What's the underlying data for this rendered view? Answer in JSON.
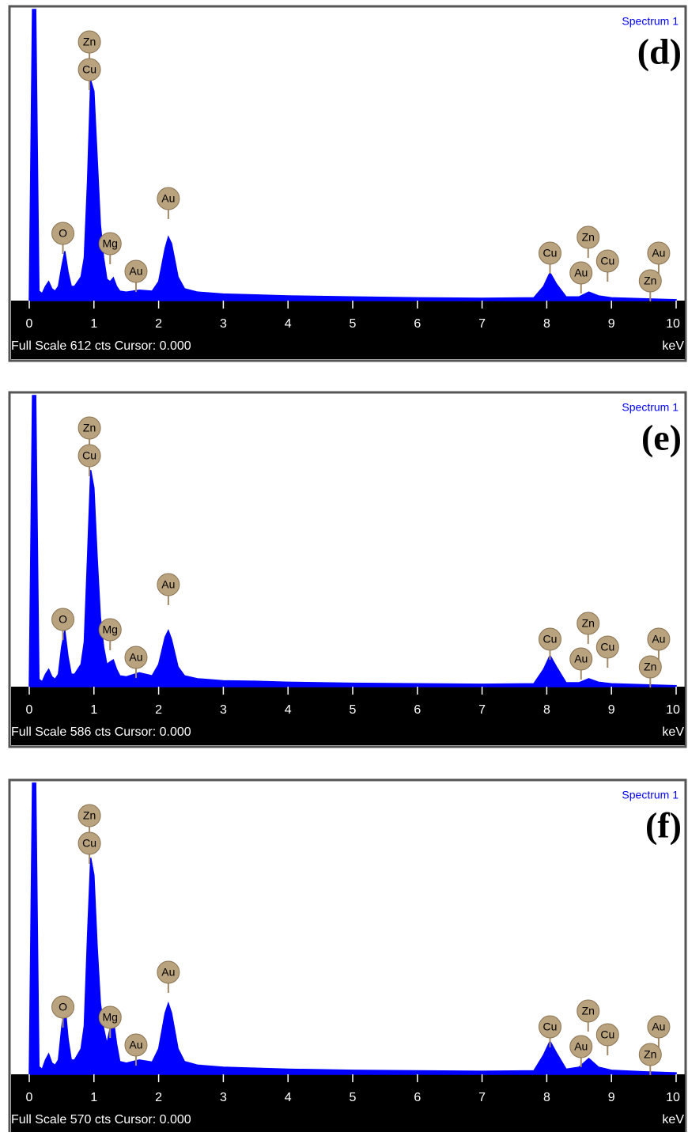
{
  "chart_data": [
    {
      "type": "area",
      "title": "Spectrum 1",
      "label": "(d)",
      "status": "Full Scale 612 cts Cursor: 0.000",
      "x_label": "keV",
      "color": "#0000ff",
      "xlim": [
        0,
        10
      ],
      "ylim": [
        0,
        612
      ],
      "xticks": [
        0,
        1,
        2,
        3,
        4,
        5,
        6,
        7,
        8,
        9,
        10
      ],
      "x": [
        0,
        0.05,
        0.1,
        0.15,
        0.2,
        0.25,
        0.3,
        0.35,
        0.4,
        0.45,
        0.5,
        0.55,
        0.6,
        0.65,
        0.7,
        0.8,
        0.85,
        0.9,
        0.95,
        1.0,
        1.05,
        1.1,
        1.15,
        1.2,
        1.25,
        1.3,
        1.35,
        1.4,
        1.5,
        1.7,
        1.9,
        2.0,
        2.1,
        2.15,
        2.2,
        2.3,
        2.4,
        2.6,
        3,
        3.5,
        4,
        5,
        6,
        7,
        7.8,
        7.95,
        8.05,
        8.15,
        8.3,
        8.5,
        8.65,
        8.8,
        9,
        9.5,
        10
      ],
      "values": [
        0,
        612,
        612,
        20,
        15,
        30,
        40,
        25,
        20,
        30,
        70,
        104,
        60,
        30,
        30,
        50,
        90,
        250,
        463,
        440,
        300,
        160,
        90,
        45,
        40,
        48,
        30,
        20,
        18,
        22,
        20,
        40,
        110,
        134,
        120,
        50,
        25,
        18,
        14,
        12,
        10,
        8,
        6,
        5,
        6,
        30,
        59,
        35,
        8,
        8,
        18,
        10,
        6,
        4,
        2
      ],
      "annotations": [
        {
          "label": "Zn",
          "x": 0.93
        },
        {
          "label": "Cu",
          "x": 0.93
        },
        {
          "label": "O",
          "x": 0.52
        },
        {
          "label": "Mg",
          "x": 1.25
        },
        {
          "label": "Au",
          "x": 1.65
        },
        {
          "label": "Au",
          "x": 2.15
        },
        {
          "label": "Cu",
          "x": 8.05
        },
        {
          "label": "Zn",
          "x": 8.64
        },
        {
          "label": "Au",
          "x": 8.53
        },
        {
          "label": "Cu",
          "x": 8.94
        },
        {
          "label": "Au",
          "x": 9.73
        },
        {
          "label": "Zn",
          "x": 9.6
        }
      ]
    },
    {
      "type": "area",
      "title": "Spectrum 1",
      "label": "(e)",
      "status": "Full Scale 586 cts Cursor: 0.000",
      "x_label": "keV",
      "color": "#0000ff",
      "xlim": [
        0,
        10
      ],
      "ylim": [
        0,
        586
      ],
      "xticks": [
        0,
        1,
        2,
        3,
        4,
        5,
        6,
        7,
        8,
        9,
        10
      ],
      "x": [
        0,
        0.05,
        0.1,
        0.15,
        0.2,
        0.25,
        0.3,
        0.35,
        0.4,
        0.45,
        0.5,
        0.55,
        0.6,
        0.65,
        0.7,
        0.8,
        0.85,
        0.9,
        0.95,
        1.0,
        1.05,
        1.1,
        1.15,
        1.2,
        1.25,
        1.3,
        1.35,
        1.4,
        1.5,
        1.7,
        1.9,
        2.0,
        2.1,
        2.15,
        2.2,
        2.3,
        2.4,
        2.6,
        3,
        3.5,
        4,
        5,
        6,
        7,
        7.8,
        7.95,
        8.05,
        8.15,
        8.3,
        8.5,
        8.65,
        8.8,
        9,
        9.5,
        10
      ],
      "values": [
        0,
        586,
        586,
        15,
        10,
        25,
        35,
        20,
        15,
        25,
        80,
        113,
        60,
        25,
        25,
        45,
        90,
        260,
        436,
        400,
        260,
        140,
        80,
        45,
        50,
        54,
        35,
        22,
        20,
        28,
        22,
        45,
        100,
        113,
        95,
        40,
        22,
        16,
        12,
        11,
        9,
        7,
        6,
        5,
        6,
        35,
        63,
        40,
        8,
        8,
        16,
        9,
        6,
        4,
        2
      ],
      "annotations": [
        {
          "label": "Zn",
          "x": 0.93
        },
        {
          "label": "Cu",
          "x": 0.93
        },
        {
          "label": "O",
          "x": 0.52
        },
        {
          "label": "Mg",
          "x": 1.25
        },
        {
          "label": "Au",
          "x": 1.65
        },
        {
          "label": "Au",
          "x": 2.15
        },
        {
          "label": "Cu",
          "x": 8.05
        },
        {
          "label": "Zn",
          "x": 8.64
        },
        {
          "label": "Au",
          "x": 8.53
        },
        {
          "label": "Cu",
          "x": 8.94
        },
        {
          "label": "Au",
          "x": 9.73
        },
        {
          "label": "Zn",
          "x": 9.6
        }
      ]
    },
    {
      "type": "area",
      "title": "Spectrum 1",
      "label": "(f)",
      "status": "Full Scale 570 cts Cursor: 0.000",
      "x_label": "keV",
      "color": "#0000ff",
      "xlim": [
        0,
        10
      ],
      "ylim": [
        0,
        570
      ],
      "xticks": [
        0,
        1,
        2,
        3,
        4,
        5,
        6,
        7,
        8,
        9,
        10
      ],
      "x": [
        0,
        0.05,
        0.1,
        0.15,
        0.2,
        0.25,
        0.3,
        0.35,
        0.4,
        0.45,
        0.5,
        0.55,
        0.6,
        0.65,
        0.7,
        0.8,
        0.85,
        0.9,
        0.95,
        1.0,
        1.05,
        1.1,
        1.15,
        1.2,
        1.25,
        1.3,
        1.35,
        1.4,
        1.5,
        1.7,
        1.9,
        2.0,
        2.1,
        2.15,
        2.2,
        2.3,
        2.4,
        2.6,
        3,
        3.5,
        4,
        5,
        6,
        7,
        7.8,
        7.95,
        8.05,
        8.15,
        8.3,
        8.5,
        8.65,
        8.8,
        9,
        9.5,
        10
      ],
      "values": [
        0,
        570,
        570,
        15,
        10,
        28,
        40,
        22,
        18,
        28,
        90,
        139,
        70,
        28,
        28,
        50,
        95,
        270,
        424,
        390,
        250,
        140,
        90,
        60,
        90,
        108,
        60,
        25,
        22,
        28,
        24,
        50,
        120,
        139,
        120,
        50,
        25,
        18,
        14,
        12,
        10,
        8,
        7,
        6,
        7,
        38,
        65,
        42,
        10,
        14,
        31,
        14,
        8,
        5,
        3
      ],
      "annotations": [
        {
          "label": "Zn",
          "x": 0.93
        },
        {
          "label": "Cu",
          "x": 0.93
        },
        {
          "label": "O",
          "x": 0.52
        },
        {
          "label": "Mg",
          "x": 1.25
        },
        {
          "label": "Au",
          "x": 1.65
        },
        {
          "label": "Au",
          "x": 2.15
        },
        {
          "label": "Cu",
          "x": 8.05
        },
        {
          "label": "Zn",
          "x": 8.64
        },
        {
          "label": "Au",
          "x": 8.53
        },
        {
          "label": "Cu",
          "x": 8.94
        },
        {
          "label": "Au",
          "x": 9.73
        },
        {
          "label": "Zn",
          "x": 9.6
        }
      ]
    }
  ]
}
